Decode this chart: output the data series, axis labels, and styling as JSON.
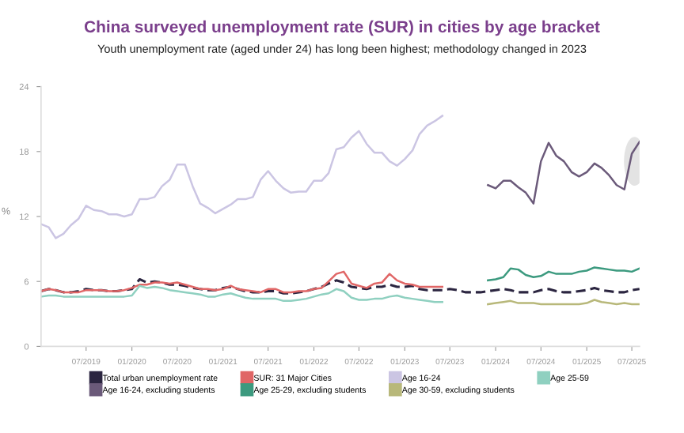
{
  "chart_data": {
    "type": "line",
    "title": "China surveyed unemployment rate (SUR) in cities by age bracket",
    "subtitle": "Youth unemployment rate (aged under 24) has long been highest; methodology changed in 2023",
    "ylabel": "%",
    "x": [
      "2019-01",
      "2019-02",
      "2019-03",
      "2019-04",
      "2019-05",
      "2019-06",
      "2019-07",
      "2019-08",
      "2019-09",
      "2019-10",
      "2019-11",
      "2019-12",
      "2020-01",
      "2020-02",
      "2020-03",
      "2020-04",
      "2020-05",
      "2020-06",
      "2020-07",
      "2020-08",
      "2020-09",
      "2020-10",
      "2020-11",
      "2020-12",
      "2021-01",
      "2021-02",
      "2021-03",
      "2021-04",
      "2021-05",
      "2021-06",
      "2021-07",
      "2021-08",
      "2021-09",
      "2021-10",
      "2021-11",
      "2021-12",
      "2022-01",
      "2022-02",
      "2022-03",
      "2022-04",
      "2022-05",
      "2022-06",
      "2022-07",
      "2022-08",
      "2022-09",
      "2022-10",
      "2022-11",
      "2022-12",
      "2023-01",
      "2023-02",
      "2023-03",
      "2023-04",
      "2023-05",
      "2023-06",
      "2023-07",
      "2023-08",
      "2023-09",
      "2023-10",
      "2023-11",
      "2023-12",
      "2024-01",
      "2024-02",
      "2024-03",
      "2024-04",
      "2024-05",
      "2024-06",
      "2024-07",
      "2024-08",
      "2024-09",
      "2024-10",
      "2024-11",
      "2024-12",
      "2025-01",
      "2025-02",
      "2025-03",
      "2025-04",
      "2025-05",
      "2025-06",
      "2025-07",
      "2025-08"
    ],
    "series": [
      {
        "name": "Total urban unemployment rate",
        "color": "#2b2540",
        "line_style": "dashed",
        "values": [
          5.1,
          5.3,
          5.2,
          5.0,
          5.0,
          5.1,
          5.3,
          5.2,
          5.2,
          5.1,
          5.1,
          5.2,
          5.3,
          6.2,
          5.9,
          6.0,
          5.9,
          5.7,
          5.7,
          5.6,
          5.4,
          5.3,
          5.2,
          5.2,
          5.4,
          5.5,
          5.3,
          5.1,
          5.0,
          5.0,
          5.1,
          5.1,
          4.9,
          4.9,
          5.0,
          5.1,
          5.3,
          5.5,
          5.8,
          6.1,
          5.9,
          5.5,
          5.4,
          5.3,
          5.5,
          5.5,
          5.7,
          5.5,
          5.5,
          5.6,
          5.3,
          5.2,
          5.2,
          5.2,
          5.3,
          5.2,
          5.0,
          5.0,
          5.0,
          5.1,
          5.2,
          5.3,
          5.2,
          5.0,
          5.0,
          5.0,
          5.2,
          5.3,
          5.1,
          5.0,
          5.0,
          5.1,
          5.2,
          5.4,
          5.2,
          5.1,
          5.0,
          5.0,
          5.2,
          5.3
        ]
      },
      {
        "name": "SUR: 31 Major Cities",
        "color": "#e06666",
        "values": [
          5.1,
          5.3,
          5.2,
          5.0,
          5.0,
          5.0,
          5.2,
          5.2,
          5.2,
          5.1,
          5.1,
          5.2,
          5.4,
          5.7,
          5.7,
          5.9,
          5.9,
          5.8,
          5.9,
          5.7,
          5.5,
          5.3,
          5.3,
          5.2,
          5.3,
          5.6,
          5.3,
          5.2,
          5.1,
          5.0,
          5.3,
          5.3,
          5.0,
          5.0,
          5.1,
          5.1,
          5.3,
          5.4,
          6.0,
          6.7,
          6.9,
          5.8,
          5.6,
          5.4,
          5.8,
          5.9,
          6.7,
          6.1,
          5.8,
          5.7,
          5.5,
          5.5,
          5.5,
          5.5,
          null,
          null,
          null,
          null,
          null,
          null,
          null,
          null,
          null,
          null,
          null,
          null,
          null,
          null,
          null,
          null,
          null,
          null,
          null,
          null,
          null,
          null,
          null,
          null,
          null,
          null
        ]
      },
      {
        "name": "Age 16-24",
        "color": "#cbc5e3",
        "values": [
          11.3,
          11.0,
          10.0,
          10.4,
          11.2,
          11.8,
          13.0,
          12.6,
          12.5,
          12.2,
          12.2,
          12.0,
          12.2,
          13.6,
          13.6,
          13.8,
          14.8,
          15.4,
          16.8,
          16.8,
          14.8,
          13.2,
          12.8,
          12.3,
          12.7,
          13.1,
          13.6,
          13.6,
          13.8,
          15.4,
          16.2,
          15.3,
          14.6,
          14.2,
          14.3,
          14.3,
          15.3,
          15.3,
          16.0,
          18.2,
          18.4,
          19.3,
          19.9,
          18.7,
          17.9,
          17.9,
          17.1,
          16.7,
          17.3,
          18.1,
          19.6,
          20.4,
          20.8,
          21.3,
          null,
          null,
          null,
          null,
          null,
          null,
          null,
          null,
          null,
          null,
          null,
          null,
          null,
          null,
          null,
          null,
          null,
          null,
          null,
          null,
          null,
          null,
          null,
          null,
          null,
          null
        ]
      },
      {
        "name": "Age 25-59",
        "color": "#8fd0c0",
        "values": [
          4.6,
          4.7,
          4.7,
          4.6,
          4.6,
          4.6,
          4.6,
          4.6,
          4.6,
          4.6,
          4.6,
          4.6,
          4.7,
          5.6,
          5.4,
          5.5,
          5.4,
          5.2,
          5.1,
          5.0,
          4.9,
          4.8,
          4.6,
          4.6,
          4.8,
          4.9,
          4.7,
          4.5,
          4.4,
          4.4,
          4.4,
          4.4,
          4.2,
          4.2,
          4.3,
          4.4,
          4.6,
          4.8,
          4.9,
          5.3,
          5.1,
          4.5,
          4.3,
          4.3,
          4.4,
          4.4,
          4.6,
          4.7,
          4.5,
          4.4,
          4.3,
          4.2,
          4.1,
          4.1,
          null,
          null,
          null,
          null,
          null,
          null,
          null,
          null,
          null,
          null,
          null,
          null,
          null,
          null,
          null,
          null,
          null,
          null,
          null,
          null,
          null,
          null,
          null,
          null,
          null,
          null
        ]
      },
      {
        "name": "Age 16-24, excluding students",
        "color": "#6b5a7a",
        "values": [
          null,
          null,
          null,
          null,
          null,
          null,
          null,
          null,
          null,
          null,
          null,
          null,
          null,
          null,
          null,
          null,
          null,
          null,
          null,
          null,
          null,
          null,
          null,
          null,
          null,
          null,
          null,
          null,
          null,
          null,
          null,
          null,
          null,
          null,
          null,
          null,
          null,
          null,
          null,
          null,
          null,
          null,
          null,
          null,
          null,
          null,
          null,
          null,
          null,
          null,
          null,
          null,
          null,
          null,
          null,
          null,
          null,
          null,
          null,
          14.9,
          14.6,
          15.3,
          15.3,
          14.7,
          14.2,
          13.2,
          17.1,
          18.8,
          17.6,
          17.1,
          16.1,
          15.7,
          16.1,
          16.9,
          16.5,
          15.8,
          14.9,
          14.5,
          17.8,
          18.9
        ]
      },
      {
        "name": "Age 25-29, excluding students",
        "color": "#3c9a7f",
        "values": [
          null,
          null,
          null,
          null,
          null,
          null,
          null,
          null,
          null,
          null,
          null,
          null,
          null,
          null,
          null,
          null,
          null,
          null,
          null,
          null,
          null,
          null,
          null,
          null,
          null,
          null,
          null,
          null,
          null,
          null,
          null,
          null,
          null,
          null,
          null,
          null,
          null,
          null,
          null,
          null,
          null,
          null,
          null,
          null,
          null,
          null,
          null,
          null,
          null,
          null,
          null,
          null,
          null,
          null,
          null,
          null,
          null,
          null,
          null,
          6.1,
          6.2,
          6.4,
          7.2,
          7.1,
          6.6,
          6.4,
          6.5,
          6.9,
          6.7,
          6.7,
          6.7,
          6.9,
          7.0,
          7.3,
          7.2,
          7.1,
          7.0,
          7.0,
          6.9,
          7.2
        ]
      },
      {
        "name": "Age 30-59, excluding students",
        "color": "#b8b87a",
        "values": [
          null,
          null,
          null,
          null,
          null,
          null,
          null,
          null,
          null,
          null,
          null,
          null,
          null,
          null,
          null,
          null,
          null,
          null,
          null,
          null,
          null,
          null,
          null,
          null,
          null,
          null,
          null,
          null,
          null,
          null,
          null,
          null,
          null,
          null,
          null,
          null,
          null,
          null,
          null,
          null,
          null,
          null,
          null,
          null,
          null,
          null,
          null,
          null,
          null,
          null,
          null,
          null,
          null,
          null,
          null,
          null,
          null,
          null,
          null,
          3.9,
          4.0,
          4.1,
          4.2,
          4.0,
          4.0,
          4.0,
          3.9,
          3.9,
          3.9,
          3.9,
          3.9,
          3.9,
          4.0,
          4.3,
          4.1,
          4.0,
          3.9,
          4.0,
          3.9,
          3.9
        ]
      }
    ],
    "xlim": [
      "2019-01",
      "2025-08"
    ],
    "xticks": [
      {
        "value": "2019-07",
        "label": "07/2019"
      },
      {
        "value": "2020-01",
        "label": "01/2020"
      },
      {
        "value": "2020-07",
        "label": "07/2020"
      },
      {
        "value": "2021-01",
        "label": "01/2021"
      },
      {
        "value": "2021-07",
        "label": "07/2021"
      },
      {
        "value": "2022-01",
        "label": "01/2022"
      },
      {
        "value": "2022-07",
        "label": "07/2022"
      },
      {
        "value": "2023-01",
        "label": "01/2023"
      },
      {
        "value": "2023-07",
        "label": "07/2023"
      },
      {
        "value": "2024-01",
        "label": "01/2024"
      },
      {
        "value": "2024-07",
        "label": "07/2024"
      },
      {
        "value": "2025-01",
        "label": "01/2025"
      },
      {
        "value": "2025-07",
        "label": "07/2025"
      }
    ],
    "ylim": [
      0,
      24
    ],
    "yticks": [
      0,
      6,
      12,
      18,
      24
    ],
    "grid": false,
    "legend": "bottom",
    "marker": "none"
  }
}
